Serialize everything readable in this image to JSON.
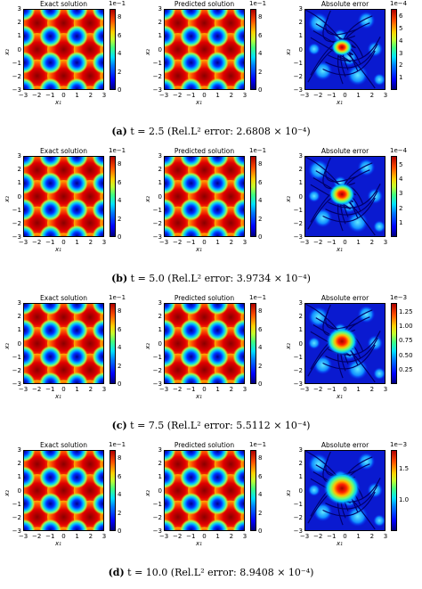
{
  "panel_titles": [
    "Exact solution",
    "Predicted solution",
    "Absolute error"
  ],
  "axis": {
    "xlabel": "x₁",
    "ylabel": "x₂",
    "ticks": [
      "−3",
      "−2",
      "−1",
      "0",
      "1",
      "2",
      "3"
    ]
  },
  "rows": [
    {
      "letter": "(a)",
      "caption_rest": "t = 2.5 (Rel.L² error: 2.6808 × 10⁻⁴)",
      "field_multiplier": "1e−1",
      "field_ticks": [
        "0",
        "2",
        "4",
        "6",
        "8"
      ],
      "error_multiplier": "1e−4",
      "error_ticks": [
        "1",
        "2",
        "3",
        "4",
        "5",
        "6"
      ]
    },
    {
      "letter": "(b)",
      "caption_rest": "t = 5.0 (Rel.L² error: 3.9734 × 10⁻⁴)",
      "field_multiplier": "1e−1",
      "field_ticks": [
        "0",
        "2",
        "4",
        "6",
        "8"
      ],
      "error_multiplier": "1e−4",
      "error_ticks": [
        "1",
        "2",
        "3",
        "4",
        "5"
      ]
    },
    {
      "letter": "(c)",
      "caption_rest": "t = 7.5 (Rel.L² error: 5.5112 × 10⁻⁴)",
      "field_multiplier": "1e−1",
      "field_ticks": [
        "0",
        "2",
        "4",
        "6",
        "8"
      ],
      "error_multiplier": "1e−3",
      "error_ticks": [
        "0.25",
        "0.50",
        "0.75",
        "1.00",
        "1.25"
      ]
    },
    {
      "letter": "(d)",
      "caption_rest": "t = 10.0 (Rel.L² error: 8.9408 × 10⁻⁴)",
      "field_multiplier": "1e−1",
      "field_ticks": [
        "0",
        "2",
        "4",
        "6",
        "8"
      ],
      "error_multiplier": "1e−3",
      "error_ticks": [
        "1.0",
        "1.5"
      ]
    }
  ]
}
